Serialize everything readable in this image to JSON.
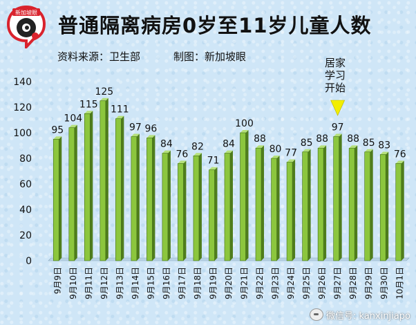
{
  "header": {
    "logo_text": "新加坡眼",
    "title": "普通隔离病房0岁至11岁儿童人数",
    "source": "资料来源：卫生部",
    "credit": "制图：新加坡眼"
  },
  "annotation": {
    "lines": [
      "居家",
      "学习",
      "开始"
    ],
    "category": "9月27日"
  },
  "watermark": {
    "text": "微信号: kanxinjiapo",
    "icon": "wechat-icon"
  },
  "colors": {
    "bar": "#8cc63e",
    "bar_side": "#4f7d1c",
    "bar_top": "#b5e07a",
    "marker": "#f2ee00"
  },
  "chart_data": {
    "type": "bar",
    "title": "普通隔离病房0岁至11岁儿童人数",
    "xlabel": "",
    "ylabel": "",
    "ylim": [
      0,
      140
    ],
    "yticks": [
      0,
      20,
      40,
      60,
      80,
      100,
      120,
      140
    ],
    "grid": false,
    "categories": [
      "9月9日",
      "9月10日",
      "9月11日",
      "9月12日",
      "9月13日",
      "9月14日",
      "9月15日",
      "9月16日",
      "9月17日",
      "9月18日",
      "9月19日",
      "9月20日",
      "9月21日",
      "9月22日",
      "9月23日",
      "9月24日",
      "9月25日",
      "9月26日",
      "9月27日",
      "9月28日",
      "9月29日",
      "9月30日",
      "10月1日"
    ],
    "values": [
      95,
      104,
      115,
      125,
      111,
      97,
      96,
      84,
      76,
      82,
      71,
      84,
      100,
      88,
      80,
      77,
      85,
      88,
      97,
      88,
      85,
      83,
      76
    ]
  }
}
